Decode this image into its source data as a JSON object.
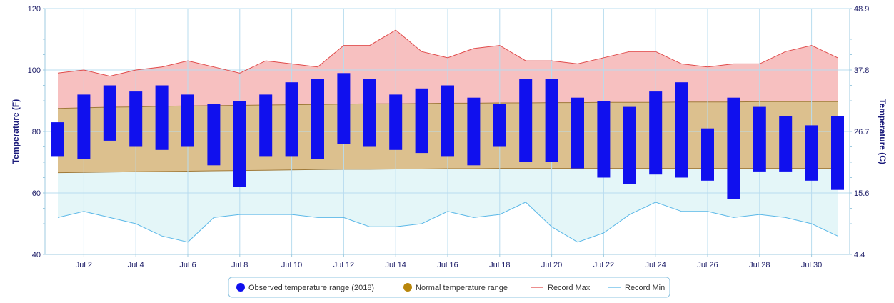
{
  "chart_data": {
    "type": "bar",
    "x": [
      "Jul 1",
      "Jul 2",
      "Jul 3",
      "Jul 4",
      "Jul 5",
      "Jul 6",
      "Jul 7",
      "Jul 8",
      "Jul 9",
      "Jul 10",
      "Jul 11",
      "Jul 12",
      "Jul 13",
      "Jul 14",
      "Jul 15",
      "Jul 16",
      "Jul 17",
      "Jul 18",
      "Jul 19",
      "Jul 20",
      "Jul 21",
      "Jul 22",
      "Jul 23",
      "Jul 24",
      "Jul 25",
      "Jul 26",
      "Jul 27",
      "Jul 28",
      "Jul 29",
      "Jul 30",
      "Jul 31"
    ],
    "x_tick_labels": [
      "Jul 2",
      "Jul 4",
      "Jul 6",
      "Jul 8",
      "Jul 10",
      "Jul 12",
      "Jul 14",
      "Jul 16",
      "Jul 18",
      "Jul 20",
      "Jul 22",
      "Jul 24",
      "Jul 26",
      "Jul 28",
      "Jul 30"
    ],
    "ylabel": "Temperature (F)",
    "ylabel_right": "Temperature (C)",
    "ylim": [
      40,
      120
    ],
    "y_ticks": [
      40,
      60,
      80,
      100,
      120
    ],
    "y_right_ticks": [
      "4.4",
      "15.6",
      "26.7",
      "37.8",
      "48.9"
    ],
    "grid": true,
    "legend_position": "bottom",
    "series": [
      {
        "name": "Observed temperature range (2018)",
        "type": "range-bar",
        "color": "#1010ee",
        "low": [
          72,
          71,
          77,
          75,
          74,
          75,
          69,
          62,
          72,
          72,
          71,
          76,
          75,
          74,
          73,
          72,
          69,
          75,
          70,
          70,
          68,
          65,
          63,
          66,
          65,
          64,
          58,
          67,
          67,
          64,
          61
        ],
        "high": [
          83,
          92,
          95,
          93,
          95,
          92,
          89,
          90,
          92,
          96,
          97,
          99,
          97,
          92,
          94,
          95,
          91,
          89,
          97,
          97,
          91,
          90,
          88,
          93,
          96,
          81,
          91,
          88,
          85,
          82,
          85
        ]
      },
      {
        "name": "Normal temperature range",
        "type": "area-range",
        "color": "#b8860b",
        "low": [
          66.6,
          66.7,
          66.8,
          66.9,
          67.0,
          67.1,
          67.2,
          67.3,
          67.4,
          67.5,
          67.6,
          67.7,
          67.7,
          67.8,
          67.8,
          67.9,
          67.9,
          68.0,
          68.0,
          68.0,
          68.0,
          68.0,
          68.0,
          68.0,
          68.0,
          68.0,
          68.0,
          68.0,
          68.0,
          68.0,
          68.0
        ],
        "high": [
          87.5,
          87.7,
          87.9,
          88.0,
          88.2,
          88.3,
          88.4,
          88.5,
          88.6,
          88.7,
          88.8,
          88.9,
          89.0,
          89.0,
          89.1,
          89.2,
          89.2,
          89.3,
          89.3,
          89.4,
          89.4,
          89.5,
          89.5,
          89.5,
          89.6,
          89.6,
          89.6,
          89.7,
          89.7,
          89.7,
          89.7
        ]
      },
      {
        "name": "Record Max",
        "type": "line",
        "color": "#e04b4b",
        "values": [
          99,
          100,
          98,
          100,
          101,
          103,
          101,
          99,
          103,
          102,
          101,
          108,
          108,
          113,
          106,
          104,
          107,
          108,
          103,
          103,
          102,
          104,
          106,
          106,
          102,
          101,
          102,
          102,
          106,
          108,
          104
        ]
      },
      {
        "name": "Record Min",
        "type": "line",
        "color": "#5bb8e8",
        "values": [
          52,
          54,
          52,
          50,
          46,
          44,
          52,
          53,
          53,
          53,
          52,
          52,
          49,
          49,
          50,
          54,
          52,
          53,
          57,
          49,
          44,
          47,
          53,
          57,
          54,
          54,
          52,
          53,
          52,
          50,
          46
        ]
      }
    ]
  },
  "legend": {
    "items": [
      {
        "label": "Observed temperature range (2018)",
        "marker": "circle",
        "color": "#1010ee"
      },
      {
        "label": "Normal temperature range",
        "marker": "circle",
        "color": "#b8860b"
      },
      {
        "label": "Record Max",
        "marker": "line",
        "color": "#e04b4b"
      },
      {
        "label": "Record Min",
        "marker": "line",
        "color": "#5bb8e8"
      }
    ]
  },
  "colors": {
    "record_band_upper": "#f7c0c0",
    "normal_band": "#dcc08e",
    "record_band_lower": "#e4f6f8",
    "grid": "#b8dcef",
    "axis_text": "#22226b"
  }
}
